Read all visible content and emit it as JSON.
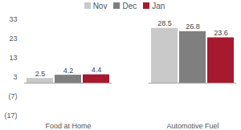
{
  "chart_data": {
    "type": "bar",
    "categories": [
      "Food at Home",
      "Automotive Fuel"
    ],
    "series": [
      {
        "name": "Nov",
        "color": "#c9c9c9",
        "values": [
          2.5,
          28.5
        ]
      },
      {
        "name": "Dec",
        "color": "#7f7f7f",
        "values": [
          4.2,
          26.8
        ]
      },
      {
        "name": "Jan",
        "color": "#a6192e",
        "values": [
          4.4,
          23.6
        ]
      }
    ],
    "ylim": [
      -17,
      33
    ],
    "yticks": [
      {
        "value": -17,
        "label": "(17)"
      },
      {
        "value": -7,
        "label": "(7)"
      },
      3,
      13,
      23,
      33
    ],
    "grid": false,
    "legend": "top",
    "data_labels": true
  }
}
